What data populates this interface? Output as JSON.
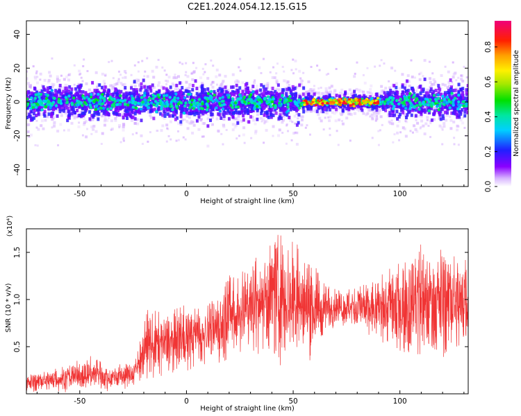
{
  "title": "C2E1.2024.054.12.15.G15",
  "colors": {
    "snr_line": "#f03434",
    "frame": "#000000",
    "background": "#ffffff"
  },
  "chart_data": [
    {
      "type": "heatmap",
      "title": "C2E1.2024.054.12.15.G15",
      "xlabel": "Height of straight line (km)",
      "ylabel": "Frequency (Hz)",
      "xlim": [
        -75,
        132
      ],
      "ylim": [
        -50,
        48
      ],
      "xticks": [
        -50,
        0,
        50,
        100
      ],
      "xtick_labels": [
        "-50",
        "0",
        "50",
        "100"
      ],
      "yticks": [
        -40,
        -20,
        0,
        20,
        40
      ],
      "ytick_labels": [
        "-40",
        "-20",
        "0",
        "20",
        "40"
      ],
      "colorbar": {
        "label": "Normalized spectral amplitude",
        "range": [
          0,
          0.95
        ],
        "ticks": [
          0.0,
          0.2,
          0.4,
          0.6,
          0.8
        ],
        "tick_labels": [
          "0.0",
          "0.2",
          "0.4",
          "0.6",
          "0.8"
        ],
        "colormap": "rainbow (white-violet-blue-cyan-green-yellow-red-magenta)"
      },
      "band": {
        "center_frequency_hz": 0,
        "core_halfwidth_hz": 6,
        "outer_halfwidth_hz": 15,
        "peak_amplitude_region_km": [
          55,
          90
        ],
        "peak_amplitude": 0.9
      }
    },
    {
      "type": "line",
      "xlabel": "Height of straight line (km)",
      "ylabel": "SNR (10 * v/v)",
      "y_multiplier_label": "(x10⁴)",
      "xlim": [
        -75,
        132
      ],
      "ylim": [
        0,
        1.75
      ],
      "xticks": [
        -50,
        0,
        50,
        100
      ],
      "xtick_labels": [
        "-50",
        "0",
        "50",
        "100"
      ],
      "yticks": [
        0.5,
        1.0,
        1.5
      ],
      "ytick_labels": [
        "0.5",
        "1.0",
        "1.5"
      ],
      "series": [
        {
          "color": "#f03434",
          "x": [
            -75,
            -65,
            -55,
            -45,
            -35,
            -25,
            -18,
            -10,
            0,
            10,
            20,
            30,
            40,
            50,
            60,
            70,
            80,
            90,
            100,
            110,
            120,
            132
          ],
          "lower": [
            0.02,
            0.03,
            0.03,
            0.04,
            0.05,
            0.07,
            0.15,
            0.2,
            0.25,
            0.3,
            0.35,
            0.45,
            0.4,
            0.35,
            0.45,
            0.75,
            0.65,
            0.55,
            0.45,
            0.35,
            0.4,
            0.45
          ],
          "upper": [
            0.2,
            0.25,
            0.32,
            0.4,
            0.3,
            0.35,
            0.9,
            0.85,
            0.95,
            1.0,
            1.25,
            1.45,
            1.7,
            1.65,
            1.35,
            1.1,
            1.15,
            1.25,
            1.4,
            1.65,
            1.55,
            1.45
          ]
        }
      ]
    }
  ]
}
